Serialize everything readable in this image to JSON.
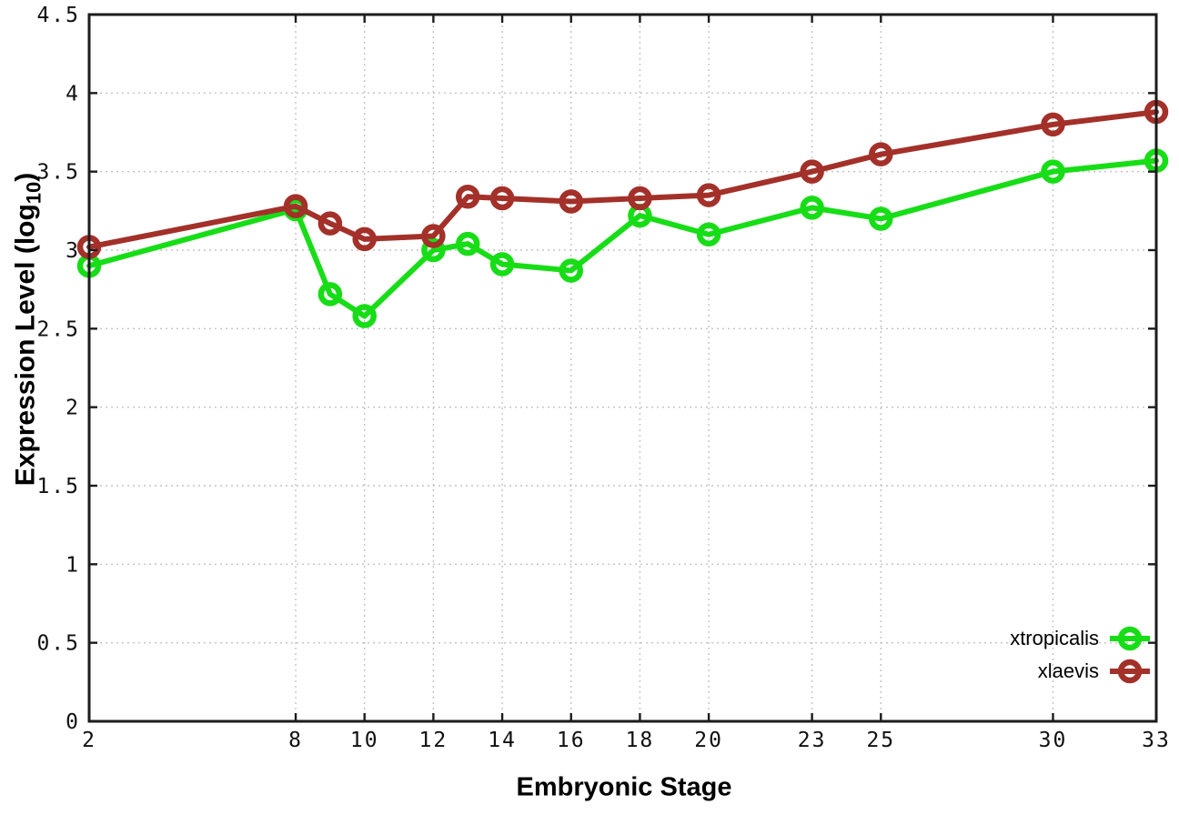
{
  "chart_data": {
    "type": "line",
    "title": "",
    "xlabel": "Embryonic Stage",
    "ylabel": {
      "prefix": "Expression Level (log",
      "sub": "10",
      "suffix": ")"
    },
    "xlim": [
      2,
      33
    ],
    "ylim": [
      0,
      4.5
    ],
    "x": [
      2,
      8,
      9,
      10,
      12,
      13,
      14,
      16,
      18,
      20,
      23,
      25,
      30,
      33
    ],
    "series": [
      {
        "name": "xtropicalis",
        "color": "#17DD17",
        "values": [
          2.9,
          3.26,
          2.72,
          2.58,
          3.0,
          3.04,
          2.91,
          2.87,
          3.22,
          3.1,
          3.27,
          3.2,
          3.5,
          3.57
        ]
      },
      {
        "name": "xlaevis",
        "color": "#A33029",
        "values": [
          3.02,
          3.28,
          3.17,
          3.07,
          3.09,
          3.34,
          3.33,
          3.31,
          3.33,
          3.35,
          3.5,
          3.61,
          3.8,
          3.88
        ]
      }
    ],
    "xticks": {
      "values": [
        2,
        8,
        10,
        12,
        14,
        16,
        18,
        20,
        23,
        25,
        30,
        33
      ],
      "labels": [
        "2",
        "8",
        "10",
        "12",
        "14",
        "16",
        "18",
        "20",
        "23",
        "25",
        "30",
        "33"
      ]
    },
    "yticks": {
      "values": [
        0,
        0.5,
        1,
        1.5,
        2,
        2.5,
        3,
        3.5,
        4,
        4.5
      ],
      "labels": [
        "0",
        "0.5",
        "1",
        "1.5",
        "2",
        "2.5",
        "3",
        "3.5",
        "4",
        "4.5"
      ]
    },
    "grid": true,
    "legend_position": "bottom-right",
    "colors": {
      "background": "#ffffff",
      "grid": "#c4c4c4",
      "axis": "#1c1c1c",
      "text": "#000000"
    }
  }
}
